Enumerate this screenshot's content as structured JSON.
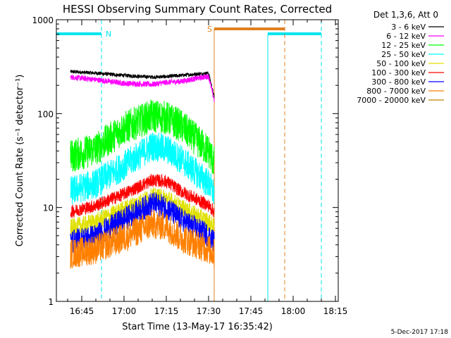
{
  "colors": {
    "background": "#ffffff",
    "axes": "#000000",
    "night_marker": "#00e5ee",
    "saa_marker": "#e08020"
  },
  "chart_data": {
    "type": "line",
    "title": "HESSI Observing Summary Count Rates, Corrected",
    "xlabel": "Start Time (13-May-17 16:35:42)",
    "ylabel": "Corrected Count Rate (s⁻¹ detector⁻¹)",
    "y_scale": "log",
    "ylim": [
      1,
      1000
    ],
    "xlim": [
      "16:36",
      "18:16"
    ],
    "x_ticks": [
      "16:45",
      "17:00",
      "17:15",
      "17:30",
      "17:45",
      "18:00",
      "18:15"
    ],
    "y_ticks": [
      "1",
      "10",
      "100",
      "1000"
    ],
    "legend_title": "Det 1,3,6, Att 0",
    "legend_position": "outside-right",
    "footer": "5-Dec-2017 17:18",
    "markers": [
      {
        "label": "N",
        "type": "eclipse",
        "segments": [
          [
            "16:36",
            "16:52"
          ],
          [
            "17:51",
            "18:10"
          ]
        ]
      },
      {
        "label": "S",
        "type": "saa",
        "segments": [
          [
            "17:32",
            "17:57"
          ]
        ]
      }
    ],
    "data_window": [
      "16:41",
      "17:32"
    ],
    "series": [
      {
        "name": "3 - 6 keV",
        "color": "#000000",
        "values_at": [
          "16:41",
          "16:50",
          "17:00",
          "17:10",
          "17:15",
          "17:20",
          "17:30",
          "17:32"
        ],
        "values": [
          280,
          270,
          255,
          245,
          248,
          255,
          270,
          150
        ]
      },
      {
        "name": "6 - 12 keV",
        "color": "#ff00ff",
        "values_at": [
          "16:41",
          "16:50",
          "17:00",
          "17:10",
          "17:15",
          "17:20",
          "17:30",
          "17:32"
        ],
        "values": [
          245,
          230,
          210,
          205,
          215,
          220,
          250,
          140
        ]
      },
      {
        "name": "12 - 25 keV",
        "color": "#00ff00",
        "values_at": [
          "16:41",
          "16:50",
          "17:00",
          "17:10",
          "17:15",
          "17:20",
          "17:30",
          "17:32"
        ],
        "values": [
          35,
          42,
          70,
          95,
          90,
          75,
          40,
          30
        ]
      },
      {
        "name": "25 - 50 keV",
        "color": "#00ffff",
        "values_at": [
          "16:41",
          "16:50",
          "17:00",
          "17:10",
          "17:15",
          "17:20",
          "17:30",
          "17:32"
        ],
        "values": [
          15,
          18,
          28,
          45,
          42,
          33,
          18,
          14
        ]
      },
      {
        "name": "50 - 100 keV",
        "color": "#e0e000",
        "values_at": [
          "16:41",
          "16:50",
          "17:00",
          "17:10",
          "17:15",
          "17:20",
          "17:30",
          "17:32"
        ],
        "values": [
          6,
          7,
          9.5,
          13,
          12.5,
          10,
          7,
          6
        ]
      },
      {
        "name": "100 - 300 keV",
        "color": "#ff0000",
        "values_at": [
          "16:41",
          "16:50",
          "17:00",
          "17:10",
          "17:15",
          "17:20",
          "17:30",
          "17:32"
        ],
        "values": [
          9,
          10.5,
          14,
          19.5,
          19,
          15,
          10.5,
          9
        ]
      },
      {
        "name": "300 - 800 keV",
        "color": "#0000ff",
        "values_at": [
          "16:41",
          "16:50",
          "17:00",
          "17:10",
          "17:15",
          "17:20",
          "17:30",
          "17:32"
        ],
        "values": [
          4.3,
          5,
          7.5,
          11,
          10,
          7.5,
          5,
          4.3
        ]
      },
      {
        "name": "800 - 7000 keV",
        "color": "#ff8000",
        "values_at": [
          "16:41",
          "16:50",
          "17:00",
          "17:10",
          "17:15",
          "17:20",
          "17:30",
          "17:32"
        ],
        "values": [
          3.2,
          3.6,
          4.8,
          6.7,
          6.3,
          4.8,
          3.6,
          3.2
        ]
      },
      {
        "name": "7000 - 20000 keV",
        "color": "#c08000",
        "values_at": [],
        "values": []
      }
    ]
  }
}
